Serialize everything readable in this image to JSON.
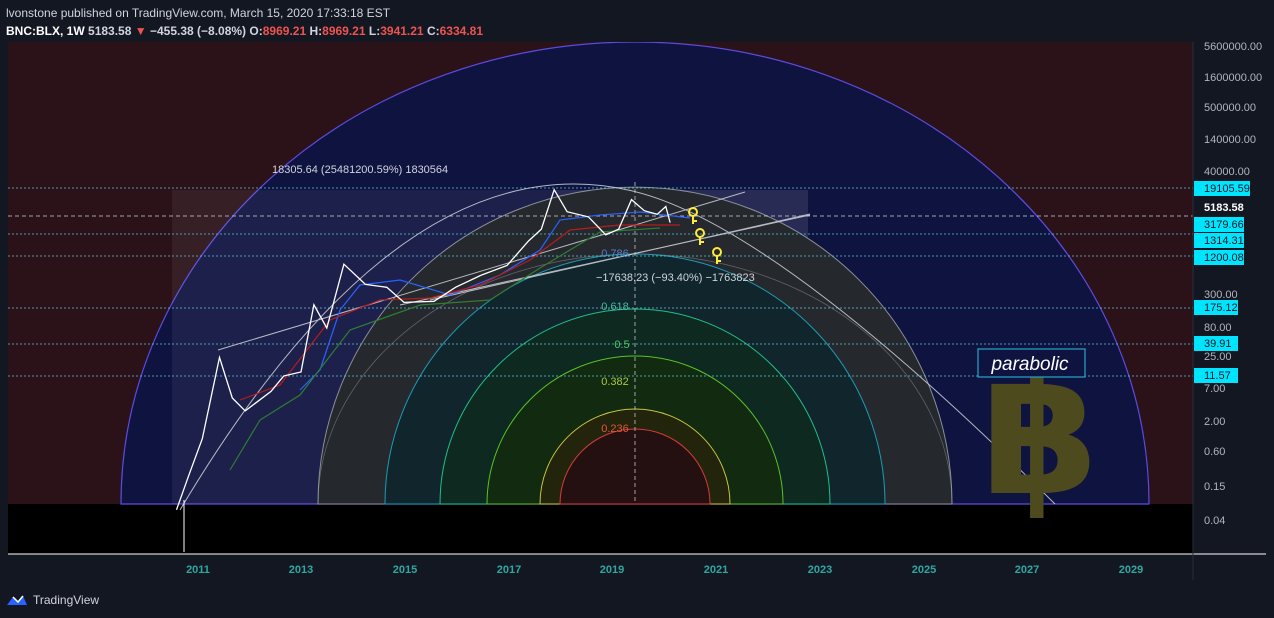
{
  "header": {
    "published": "lvonstone published on TradingView.com, March 15, 2020 17:33:18 EST",
    "symbol": "BNC:BLX, 1W",
    "price": "5183.58",
    "change": "−455.38 (−8.08%)",
    "o_label": "O:",
    "o_value": "8969.21",
    "h_label": "H:",
    "h_value": "8969.21",
    "l_label": "L:",
    "l_value": "3941.21",
    "c_label": "C:",
    "c_value": "6334.81"
  },
  "footer": {
    "brand": "TradingView"
  },
  "colors": {
    "background": "#131722",
    "up_accent": "#26a69a",
    "down_accent": "#ef5350",
    "price_line": "#ffffff",
    "label_cyan": "#00e5ff"
  },
  "chart_data": {
    "type": "line",
    "title": "",
    "scale": "log",
    "grid": false,
    "ylim": [
      0.02,
      6000000
    ],
    "x_ticks": [
      "2011",
      "2013",
      "2015",
      "2017",
      "2019",
      "2021",
      "2023",
      "2025",
      "2027",
      "2029"
    ],
    "y_ticks": [
      "5600000.00",
      "1600000.00",
      "500000.00",
      "140000.00",
      "40000.00",
      "300.00",
      "80.00",
      "25.00",
      "7.00",
      "2.00",
      "0.60",
      "0.15",
      "0.04"
    ],
    "price_labels": [
      "19105.59",
      "3179.66",
      "1314.31",
      "1200.08",
      "175.12",
      "39.91",
      "11.57"
    ],
    "current_price": "5183.58",
    "series": [
      {
        "values": [
          {
            "x": "2010-08",
            "y": 0.06
          },
          {
            "x": "2010-11",
            "y": 0.25
          },
          {
            "x": "2011-02",
            "y": 1.0
          },
          {
            "x": "2011-06",
            "y": 25
          },
          {
            "x": "2011-09",
            "y": 5
          },
          {
            "x": "2011-12",
            "y": 3
          },
          {
            "x": "2012-06",
            "y": 6.5
          },
          {
            "x": "2012-09",
            "y": 12
          },
          {
            "x": "2013-01",
            "y": 14
          },
          {
            "x": "2013-04",
            "y": 200
          },
          {
            "x": "2013-07",
            "y": 80
          },
          {
            "x": "2013-11",
            "y": 1000
          },
          {
            "x": "2014-04",
            "y": 450
          },
          {
            "x": "2014-09",
            "y": 400
          },
          {
            "x": "2015-01",
            "y": 220
          },
          {
            "x": "2015-08",
            "y": 230
          },
          {
            "x": "2016-01",
            "y": 400
          },
          {
            "x": "2016-07",
            "y": 650
          },
          {
            "x": "2017-01",
            "y": 950
          },
          {
            "x": "2017-06",
            "y": 2500
          },
          {
            "x": "2017-09",
            "y": 4000
          },
          {
            "x": "2017-12",
            "y": 19105
          },
          {
            "x": "2018-03",
            "y": 8000
          },
          {
            "x": "2018-08",
            "y": 6500
          },
          {
            "x": "2018-12",
            "y": 3200
          },
          {
            "x": "2019-03",
            "y": 4000
          },
          {
            "x": "2019-06",
            "y": 12900
          },
          {
            "x": "2019-09",
            "y": 8300
          },
          {
            "x": "2019-12",
            "y": 7200
          },
          {
            "x": "2020-02",
            "y": 9800
          },
          {
            "x": "2020-03",
            "y": 5183.58
          }
        ]
      }
    ],
    "fib_levels": [
      "0.786",
      "0.618",
      "0.5",
      "0.382",
      "0.236"
    ],
    "annotations": {
      "rise": "18305.64 (25481200.59%) 1830564",
      "fall": "−17638.23 (−93.40%) −1763823",
      "text_box": "parabolic"
    }
  }
}
